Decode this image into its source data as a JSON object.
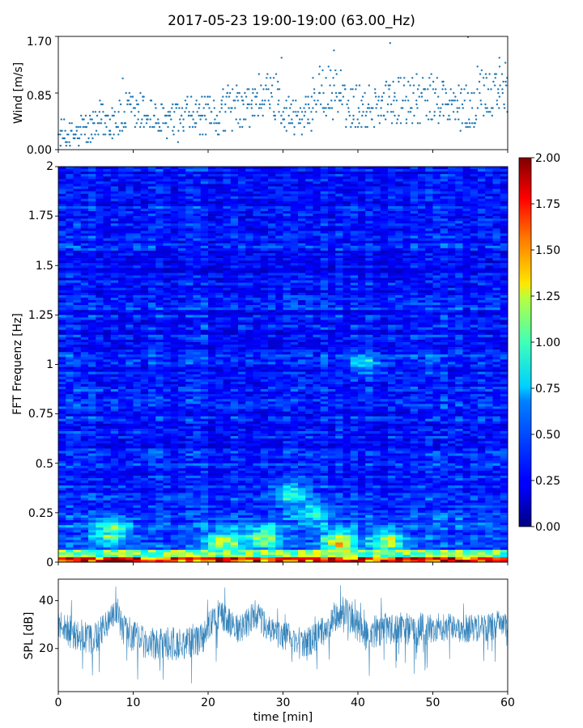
{
  "chart_data": [
    {
      "type": "scatter",
      "title": "2017-05-23 19:00-19:00 (63.00_Hz)",
      "xlabel": "",
      "ylabel": "Wind [m/s]",
      "xlim": [
        0,
        60
      ],
      "ylim": [
        0.0,
        1.7
      ],
      "ytick_labels": [
        "0.00",
        "0.85",
        "1.70"
      ],
      "yticks": [
        0.0,
        0.85,
        1.7
      ],
      "xticks": [
        0,
        10,
        20,
        30,
        40,
        50,
        60
      ],
      "marker_color": "#1f77b4",
      "sample_interval_min": 0.25,
      "segments": [
        {
          "t0": 0,
          "t1": 3,
          "mean": 0.22
        },
        {
          "t0": 3,
          "t1": 5.5,
          "mean": 0.3
        },
        {
          "t0": 5.5,
          "t1": 9,
          "mean": 0.45
        },
        {
          "t0": 9,
          "t1": 13,
          "mean": 0.55
        },
        {
          "t0": 13,
          "t1": 17,
          "mean": 0.42
        },
        {
          "t0": 17,
          "t1": 22,
          "mean": 0.5
        },
        {
          "t0": 22,
          "t1": 26,
          "mean": 0.62
        },
        {
          "t0": 26,
          "t1": 30,
          "mean": 0.8
        },
        {
          "t0": 30,
          "t1": 34,
          "mean": 0.52
        },
        {
          "t0": 34,
          "t1": 38,
          "mean": 0.85
        },
        {
          "t0": 38,
          "t1": 43,
          "mean": 0.65
        },
        {
          "t0": 43,
          "t1": 47,
          "mean": 0.72
        },
        {
          "t0": 47,
          "t1": 52,
          "mean": 0.75
        },
        {
          "t0": 52,
          "t1": 56,
          "mean": 0.62
        },
        {
          "t0": 56,
          "t1": 60,
          "mean": 0.9
        }
      ],
      "outliers": [
        {
          "t": 8.6,
          "y": 1.07
        },
        {
          "t": 29.8,
          "y": 1.38
        },
        {
          "t": 36.8,
          "y": 1.49
        },
        {
          "t": 44.3,
          "y": 1.6
        },
        {
          "t": 54.7,
          "y": 1.69
        },
        {
          "t": 58.9,
          "y": 1.38
        }
      ]
    },
    {
      "type": "heatmap",
      "title": "",
      "xlabel": "",
      "ylabel": "FFT Frequenz [Hz]",
      "xlim": [
        0,
        60
      ],
      "ylim": [
        0,
        2
      ],
      "ytick_labels": [
        "0",
        "0.25",
        "0.5",
        "0.75",
        "1",
        "1.25",
        "1.5",
        "1.75",
        "2"
      ],
      "yticks": [
        0,
        0.25,
        0.5,
        0.75,
        1,
        1.25,
        1.5,
        1.75,
        2
      ],
      "xticks": [
        0,
        10,
        20,
        30,
        40,
        50,
        60
      ],
      "colormap": "jet",
      "colorbar": {
        "range": [
          0.0,
          2.0
        ],
        "ticks": [
          0.0,
          0.25,
          0.5,
          0.75,
          1.0,
          1.25,
          1.5,
          1.75,
          2.0
        ],
        "tick_labels": [
          "0.00",
          "0.25",
          "0.50",
          "0.75",
          "1.00",
          "1.25",
          "1.50",
          "1.75",
          "2.00"
        ]
      },
      "background_level": 0.28,
      "hotspots": [
        {
          "t": 7,
          "f": 0.15,
          "value": 1.0
        },
        {
          "t": 22,
          "f": 0.1,
          "value": 1.15
        },
        {
          "t": 27.5,
          "f": 0.12,
          "value": 1.05
        },
        {
          "t": 31,
          "f": 0.35,
          "value": 0.8
        },
        {
          "t": 37.5,
          "f": 0.1,
          "value": 1.25
        },
        {
          "t": 41,
          "f": 1.0,
          "value": 0.65
        },
        {
          "t": 44,
          "f": 0.1,
          "value": 1.1
        },
        {
          "t": 34,
          "f": 0.25,
          "value": 0.75
        }
      ]
    },
    {
      "type": "area",
      "title": "",
      "xlabel": "time [min]",
      "ylabel": "SPL [dB]",
      "xlim": [
        0,
        60
      ],
      "ylim": [
        2,
        49
      ],
      "yticks": [
        20,
        40
      ],
      "ytick_labels": [
        "20",
        "40"
      ],
      "xticks": [
        0,
        10,
        20,
        30,
        40,
        50,
        60
      ],
      "xtick_labels": [
        "0",
        "10",
        "20",
        "30",
        "40",
        "50",
        "60"
      ],
      "color": "#1f77b4",
      "envelope": [
        {
          "t": 0,
          "mean": 31,
          "spread": 6
        },
        {
          "t": 2,
          "mean": 26,
          "spread": 7
        },
        {
          "t": 5,
          "mean": 24,
          "spread": 7
        },
        {
          "t": 7.5,
          "mean": 35,
          "spread": 6
        },
        {
          "t": 9,
          "mean": 27,
          "spread": 7
        },
        {
          "t": 12,
          "mean": 22,
          "spread": 7
        },
        {
          "t": 16,
          "mean": 22,
          "spread": 7
        },
        {
          "t": 19,
          "mean": 24,
          "spread": 7
        },
        {
          "t": 21.5,
          "mean": 34,
          "spread": 7
        },
        {
          "t": 24,
          "mean": 28,
          "spread": 6
        },
        {
          "t": 26.5,
          "mean": 34,
          "spread": 7
        },
        {
          "t": 29,
          "mean": 27,
          "spread": 6
        },
        {
          "t": 33,
          "mean": 21,
          "spread": 7
        },
        {
          "t": 36,
          "mean": 29,
          "spread": 6
        },
        {
          "t": 38,
          "mean": 36,
          "spread": 6
        },
        {
          "t": 41,
          "mean": 26,
          "spread": 7
        },
        {
          "t": 45,
          "mean": 29,
          "spread": 7
        },
        {
          "t": 48,
          "mean": 28,
          "spread": 7
        },
        {
          "t": 52,
          "mean": 29,
          "spread": 6
        },
        {
          "t": 56,
          "mean": 28,
          "spread": 6
        },
        {
          "t": 60,
          "mean": 31,
          "spread": 6
        }
      ]
    }
  ]
}
